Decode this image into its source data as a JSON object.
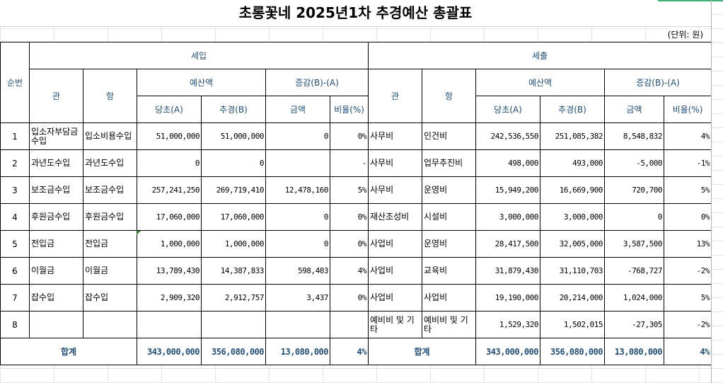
{
  "title": "초롱꽃네 2025년1차 추경예산 총괄표",
  "unit": "(단위: 원)",
  "headers": {
    "seq": "순번",
    "income": "세입",
    "expense": "세출",
    "gwan": "관",
    "hang": "항",
    "budget": "예산액",
    "diff": "증감(B)-(A)",
    "orig": "당초(A)",
    "supp": "추경(B)",
    "amount": "금액",
    "ratio": "비율(%)"
  },
  "rows": [
    {
      "no": "1",
      "in_gwan": "입소자부담금수입",
      "in_hang": "입소비용수입",
      "in_a": "51,000,000",
      "in_b": "51,000,000",
      "in_amt": "0",
      "in_pct": "0%",
      "ex_gwan": "사무비",
      "ex_hang": "인건비",
      "ex_a": "242,536,550",
      "ex_b": "251,085,382",
      "ex_amt": "8,548,832",
      "ex_pct": "4%"
    },
    {
      "no": "2",
      "in_gwan": "과년도수입",
      "in_hang": "과년도수입",
      "in_a": "0",
      "in_b": "0",
      "in_amt": "",
      "in_pct": "-",
      "ex_gwan": "사무비",
      "ex_hang": "업무추진비",
      "ex_a": "498,000",
      "ex_b": "493,000",
      "ex_amt": "-5,000",
      "ex_pct": "-1%"
    },
    {
      "no": "3",
      "in_gwan": "보조금수입",
      "in_hang": "보조금수입",
      "in_a": "257,241,250",
      "in_b": "269,719,410",
      "in_amt": "12,478,160",
      "in_pct": "5%",
      "ex_gwan": "사무비",
      "ex_hang": "운영비",
      "ex_a": "15,949,200",
      "ex_b": "16,669,900",
      "ex_amt": "720,700",
      "ex_pct": "5%"
    },
    {
      "no": "4",
      "in_gwan": "후원금수입",
      "in_hang": "후원금수입",
      "in_a": "17,060,000",
      "in_b": "17,060,000",
      "in_amt": "0",
      "in_pct": "0%",
      "ex_gwan": "재산조성비",
      "ex_hang": "시설비",
      "ex_a": "3,000,000",
      "ex_b": "3,000,000",
      "ex_amt": "0",
      "ex_pct": "0%"
    },
    {
      "no": "5",
      "in_gwan": "전입금",
      "in_hang": "전입금",
      "in_a": "1,000,000",
      "in_b": "1,000,000",
      "in_amt": "0",
      "in_pct": "0%",
      "ex_gwan": "사업비",
      "ex_hang": "운영비",
      "ex_a": "28,417,500",
      "ex_b": "32,005,000",
      "ex_amt": "3,587,500",
      "ex_pct": "13%"
    },
    {
      "no": "6",
      "in_gwan": "이월금",
      "in_hang": "이월금",
      "in_a": "13,789,430",
      "in_b": "14,387,833",
      "in_amt": "598,403",
      "in_pct": "4%",
      "ex_gwan": "사업비",
      "ex_hang": "교육비",
      "ex_a": "31,879,430",
      "ex_b": "31,110,703",
      "ex_amt": "-768,727",
      "ex_pct": "-2%"
    },
    {
      "no": "7",
      "in_gwan": "잡수입",
      "in_hang": "잡수입",
      "in_a": "2,909,320",
      "in_b": "2,912,757",
      "in_amt": "3,437",
      "in_pct": "0%",
      "ex_gwan": "사업비",
      "ex_hang": "사업비",
      "ex_a": "19,190,000",
      "ex_b": "20,214,000",
      "ex_amt": "1,024,000",
      "ex_pct": "5%"
    },
    {
      "no": "8",
      "in_gwan": "",
      "in_hang": "",
      "in_a": "",
      "in_b": "",
      "in_amt": "",
      "in_pct": "",
      "ex_gwan": "예비비 및 기타",
      "ex_hang": "예비비 및 기타",
      "ex_a": "1,529,320",
      "ex_b": "1,502,015",
      "ex_amt": "-27,305",
      "ex_pct": "-2%"
    }
  ],
  "total": {
    "label": "합계",
    "in_a": "343,000,000",
    "in_b": "356,080,000",
    "in_amt": "13,080,000",
    "in_pct": "4%",
    "ex_label": "합계",
    "ex_a": "343,000,000",
    "ex_b": "356,080,000",
    "ex_amt": "13,080,000",
    "ex_pct": "4%"
  }
}
